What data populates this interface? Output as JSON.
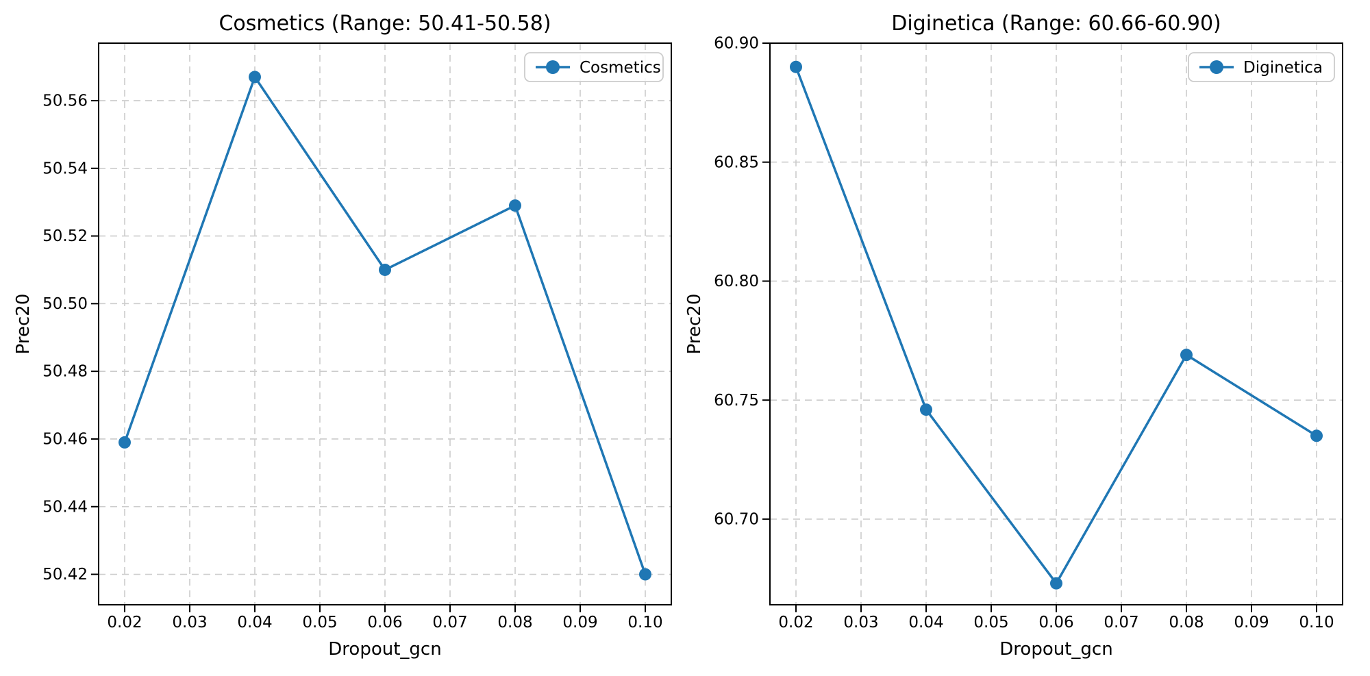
{
  "figure": {
    "background": "#ffffff"
  },
  "chart_data": [
    {
      "id": "cosmetics",
      "type": "line",
      "title": "Cosmetics (Range: 50.41-50.58)",
      "xlabel": "Dropout_gcn",
      "ylabel": "Prec20",
      "grid": {
        "visible": true,
        "style": "dashed",
        "color": "#cccccc"
      },
      "legend": {
        "position": "upper right",
        "entries": [
          "Cosmetics"
        ]
      },
      "series": [
        {
          "name": "Cosmetics",
          "color": "#1f77b4",
          "marker": "o",
          "line_style": "solid",
          "x": [
            0.02,
            0.04,
            0.06,
            0.08,
            0.1
          ],
          "values": [
            50.459,
            50.567,
            50.51,
            50.529,
            50.42
          ]
        }
      ],
      "xlim": [
        0.016,
        0.104
      ],
      "ylim": [
        50.411,
        50.577
      ],
      "xticks": {
        "values": [
          0.02,
          0.03,
          0.04,
          0.05,
          0.06,
          0.07,
          0.08,
          0.09,
          0.1
        ],
        "labels": [
          "0.02",
          "0.03",
          "0.04",
          "0.05",
          "0.06",
          "0.07",
          "0.08",
          "0.09",
          "0.10"
        ]
      },
      "yticks": {
        "values": [
          50.42,
          50.44,
          50.46,
          50.48,
          50.5,
          50.52,
          50.54,
          50.56
        ],
        "labels": [
          "50.42",
          "50.44",
          "50.46",
          "50.48",
          "50.50",
          "50.52",
          "50.54",
          "50.56"
        ]
      }
    },
    {
      "id": "diginetica",
      "type": "line",
      "title": "Diginetica (Range: 60.66-60.90)",
      "xlabel": "Dropout_gcn",
      "ylabel": "Prec20",
      "grid": {
        "visible": true,
        "style": "dashed",
        "color": "#cccccc"
      },
      "legend": {
        "position": "upper right",
        "entries": [
          "Diginetica"
        ]
      },
      "series": [
        {
          "name": "Diginetica",
          "color": "#1f77b4",
          "marker": "o",
          "line_style": "solid",
          "x": [
            0.02,
            0.04,
            0.06,
            0.08,
            0.1
          ],
          "values": [
            60.89,
            60.746,
            60.673,
            60.769,
            60.735
          ]
        }
      ],
      "xlim": [
        0.016,
        0.104
      ],
      "ylim": [
        60.664,
        60.9
      ],
      "xticks": {
        "values": [
          0.02,
          0.03,
          0.04,
          0.05,
          0.06,
          0.07,
          0.08,
          0.09,
          0.1
        ],
        "labels": [
          "0.02",
          "0.03",
          "0.04",
          "0.05",
          "0.06",
          "0.07",
          "0.08",
          "0.09",
          "0.10"
        ]
      },
      "yticks": {
        "values": [
          60.7,
          60.75,
          60.8,
          60.85,
          60.9
        ],
        "labels": [
          "60.70",
          "60.75",
          "60.80",
          "60.85",
          "60.90"
        ]
      }
    }
  ]
}
